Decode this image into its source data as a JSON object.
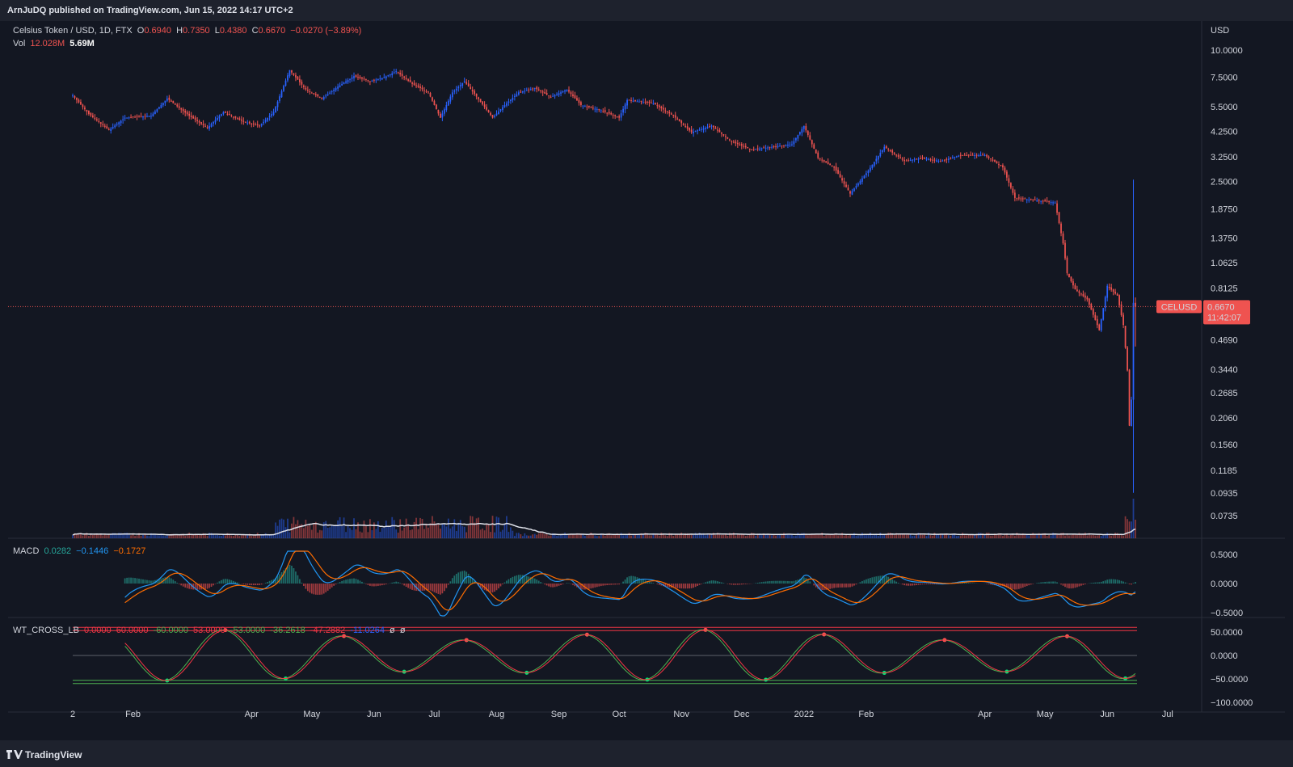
{
  "header": {
    "published": "ArnJuDQ published on TradingView.com, Jun 15, 2022 14:17 UTC+2"
  },
  "footer": {
    "brand": "TradingView"
  },
  "legend": {
    "symbol": "Celsius Token / USD, 1D, FTX",
    "o_label": "O",
    "o_value": "0.6940",
    "h_label": "H",
    "h_value": "0.7350",
    "l_label": "L",
    "l_value": "0.4380",
    "c_label": "C",
    "c_value": "0.6670",
    "change": "−0.0270 (−3.89%)",
    "vol_label": "Vol",
    "vol_value": "12.028M",
    "vol_ma": "5.69M",
    "macd_label": "MACD",
    "macd_hist": "0.0282",
    "macd_line": "−0.1446",
    "macd_signal": "−0.1727",
    "wt_label": "WT_CROSS_LB",
    "wt_values": [
      "0.0000",
      "60.0000",
      "-60.0000",
      "53.0000",
      "-53.0000",
      "-36.2618",
      "-47.2882",
      "-11.0264",
      "ø",
      "ø"
    ]
  },
  "price_badge": {
    "symbol": "CELUSD",
    "price": "0.6670",
    "countdown": "11:42:07"
  },
  "colors": {
    "up": "#2962ff",
    "down": "#ef5350",
    "bg": "#131722",
    "volma": "#e0e3eb",
    "macd": "#2196f3",
    "signal": "#ff6d00",
    "wt1": "#4caf50",
    "wt2": "#f23645"
  },
  "chart_data": {
    "type": "candlestick",
    "price_axis": {
      "currency": "USD",
      "scale": "log",
      "ticks": [
        "10.0000",
        "7.5000",
        "5.5000",
        "4.2500",
        "3.2500",
        "2.5000",
        "1.8750",
        "1.3750",
        "1.0625",
        "0.8125",
        "0.4690",
        "0.3440",
        "0.2685",
        "0.2060",
        "0.1560",
        "0.1185",
        "0.0935",
        "0.0735"
      ]
    },
    "macd_axis": {
      "ticks": [
        "0.5000",
        "0.0000",
        "−0.5000"
      ]
    },
    "wt_axis": {
      "ticks": [
        "50.0000",
        "0.0000",
        "−50.0000",
        "−100.0000"
      ]
    },
    "time_axis": {
      "ticks": [
        "2",
        "Feb",
        "Apr",
        "May",
        "Jun",
        "Jul",
        "Aug",
        "Sep",
        "Oct",
        "Nov",
        "Dec",
        "2022",
        "Feb",
        "Apr",
        "May",
        "Jun",
        "Jul"
      ]
    },
    "price_path": [
      [
        "2021-01-02",
        6.2
      ],
      [
        "2021-01-10",
        5.1
      ],
      [
        "2021-01-20",
        4.3
      ],
      [
        "2021-01-28",
        4.9
      ],
      [
        "2021-02-10",
        5.0
      ],
      [
        "2021-02-18",
        6.0
      ],
      [
        "2021-03-01",
        5.0
      ],
      [
        "2021-03-10",
        4.4
      ],
      [
        "2021-03-18",
        5.2
      ],
      [
        "2021-03-28",
        4.7
      ],
      [
        "2021-04-05",
        4.5
      ],
      [
        "2021-04-12",
        5.2
      ],
      [
        "2021-04-20",
        8.1
      ],
      [
        "2021-04-28",
        6.6
      ],
      [
        "2021-05-06",
        6.0
      ],
      [
        "2021-05-14",
        6.8
      ],
      [
        "2021-05-22",
        7.6
      ],
      [
        "2021-05-30",
        7.2
      ],
      [
        "2021-06-06",
        7.5
      ],
      [
        "2021-06-12",
        8.0
      ],
      [
        "2021-06-20",
        7.0
      ],
      [
        "2021-06-28",
        6.4
      ],
      [
        "2021-07-04",
        4.9
      ],
      [
        "2021-07-10",
        6.4
      ],
      [
        "2021-07-16",
        7.2
      ],
      [
        "2021-07-24",
        5.8
      ],
      [
        "2021-07-30",
        4.9
      ],
      [
        "2021-08-05",
        5.6
      ],
      [
        "2021-08-12",
        6.4
      ],
      [
        "2021-08-20",
        6.7
      ],
      [
        "2021-08-28",
        6.1
      ],
      [
        "2021-09-05",
        6.6
      ],
      [
        "2021-09-12",
        5.6
      ],
      [
        "2021-09-22",
        5.3
      ],
      [
        "2021-10-01",
        4.9
      ],
      [
        "2021-10-05",
        5.9
      ],
      [
        "2021-10-18",
        5.7
      ],
      [
        "2021-10-28",
        5.0
      ],
      [
        "2021-11-06",
        4.2
      ],
      [
        "2021-11-16",
        4.5
      ],
      [
        "2021-11-26",
        3.8
      ],
      [
        "2021-12-06",
        3.5
      ],
      [
        "2021-12-16",
        3.6
      ],
      [
        "2021-12-26",
        3.7
      ],
      [
        "2022-01-01",
        4.5
      ],
      [
        "2022-01-08",
        3.2
      ],
      [
        "2022-01-16",
        2.9
      ],
      [
        "2022-01-24",
        2.2
      ],
      [
        "2022-02-02",
        2.8
      ],
      [
        "2022-02-10",
        3.6
      ],
      [
        "2022-02-20",
        3.1
      ],
      [
        "2022-03-01",
        3.2
      ],
      [
        "2022-03-10",
        3.1
      ],
      [
        "2022-03-20",
        3.3
      ],
      [
        "2022-04-01",
        3.3
      ],
      [
        "2022-04-10",
        2.9
      ],
      [
        "2022-04-16",
        2.1
      ],
      [
        "2022-04-26",
        2.05
      ],
      [
        "2022-05-06",
        2.0
      ],
      [
        "2022-05-10",
        1.3
      ],
      [
        "2022-05-12",
        0.95
      ],
      [
        "2022-05-16",
        0.8
      ],
      [
        "2022-05-22",
        0.72
      ],
      [
        "2022-05-28",
        0.52
      ],
      [
        "2022-06-01",
        0.83
      ],
      [
        "2022-06-06",
        0.75
      ],
      [
        "2022-06-09",
        0.55
      ],
      [
        "2022-06-11",
        0.34
      ],
      [
        "2022-06-12",
        0.19
      ],
      [
        "2022-06-13",
        0.25
      ],
      [
        "2022-06-14",
        0.694
      ],
      [
        "2022-06-15",
        0.667
      ]
    ],
    "last_bar": {
      "open": 0.694,
      "high": 0.735,
      "low": 0.438,
      "close": 0.667,
      "volume": "12.028M"
    }
  }
}
